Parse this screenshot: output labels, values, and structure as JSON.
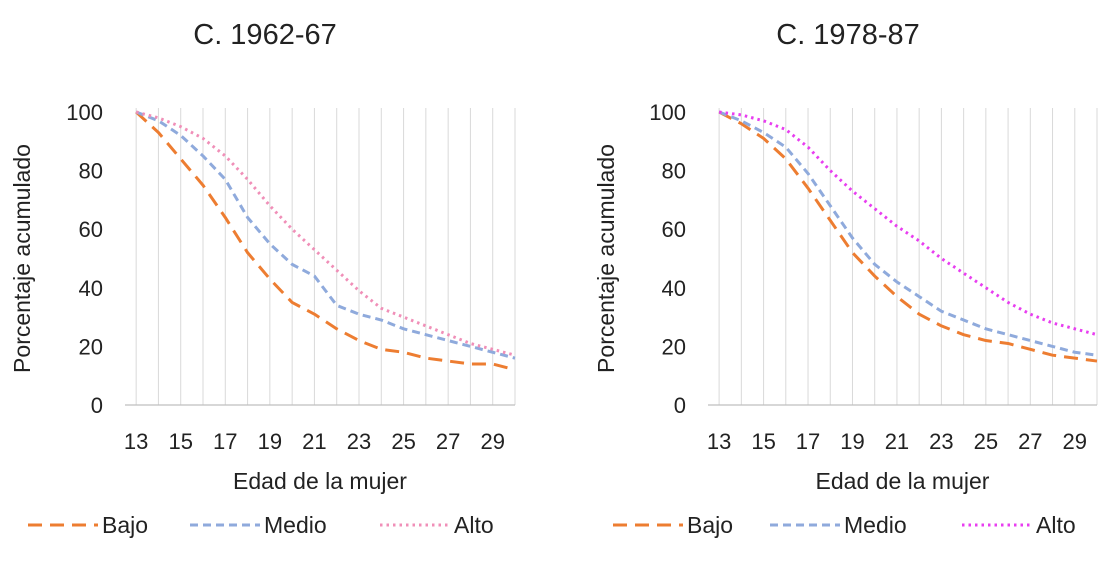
{
  "chart_data": [
    {
      "type": "line",
      "title": "C. 1962-67",
      "xlabel": "Edad de la mujer",
      "ylabel": "Porcentaje acumulado",
      "x": [
        13,
        14,
        15,
        16,
        17,
        18,
        19,
        20,
        21,
        22,
        23,
        24,
        25,
        26,
        27,
        28,
        29,
        30
      ],
      "xticks": [
        13,
        15,
        17,
        19,
        21,
        23,
        25,
        27,
        29
      ],
      "xlim": [
        12.5,
        30
      ],
      "ylim": [
        0,
        100
      ],
      "yticks": [
        0,
        20,
        40,
        60,
        80,
        100
      ],
      "grid": "vertical",
      "legend": "bottom",
      "series": [
        {
          "name": "Bajo",
          "color": "#ED7D31",
          "dash": "dashed",
          "values": [
            100,
            93,
            84,
            75,
            64,
            52,
            43,
            35,
            31,
            26,
            22,
            19,
            18,
            16,
            15,
            14,
            14,
            12
          ]
        },
        {
          "name": "Medio",
          "color": "#8FAADC",
          "dash": "short-dashed",
          "values": [
            100,
            97,
            92,
            85,
            77,
            64,
            55,
            48,
            44,
            34,
            31,
            29,
            26,
            24,
            22,
            20,
            18,
            16
          ]
        },
        {
          "name": "Alto",
          "color": "#F08FB8",
          "dash": "dotted",
          "values": [
            100,
            98,
            95,
            91,
            85,
            77,
            68,
            60,
            53,
            46,
            39,
            33,
            30,
            27,
            24,
            21,
            19,
            17
          ]
        }
      ]
    },
    {
      "type": "line",
      "title": "C. 1978-87",
      "xlabel": "Edad de la mujer",
      "ylabel": "Porcentaje acumulado",
      "x": [
        13,
        14,
        15,
        16,
        17,
        18,
        19,
        20,
        21,
        22,
        23,
        24,
        25,
        26,
        27,
        28,
        29,
        30
      ],
      "xticks": [
        13,
        15,
        17,
        19,
        21,
        23,
        25,
        27,
        29
      ],
      "xlim": [
        12.5,
        30
      ],
      "ylim": [
        0,
        100
      ],
      "yticks": [
        0,
        20,
        40,
        60,
        80,
        100
      ],
      "grid": "vertical",
      "legend": "bottom",
      "series": [
        {
          "name": "Bajo",
          "color": "#ED7D31",
          "dash": "dashed",
          "values": [
            100,
            96,
            91,
            84,
            74,
            63,
            52,
            44,
            37,
            31,
            27,
            24,
            22,
            21,
            19,
            17,
            16,
            15
          ]
        },
        {
          "name": "Medio",
          "color": "#8FAADC",
          "dash": "short-dashed",
          "values": [
            100,
            97,
            93,
            88,
            79,
            68,
            57,
            48,
            42,
            37,
            32,
            29,
            26,
            24,
            22,
            20,
            18,
            17
          ]
        },
        {
          "name": "Alto",
          "color": "#E83EF0",
          "dash": "dotted",
          "values": [
            100,
            99,
            97,
            94,
            88,
            80,
            73,
            67,
            61,
            56,
            50,
            45,
            40,
            35,
            31,
            28,
            26,
            24
          ]
        }
      ]
    }
  ]
}
